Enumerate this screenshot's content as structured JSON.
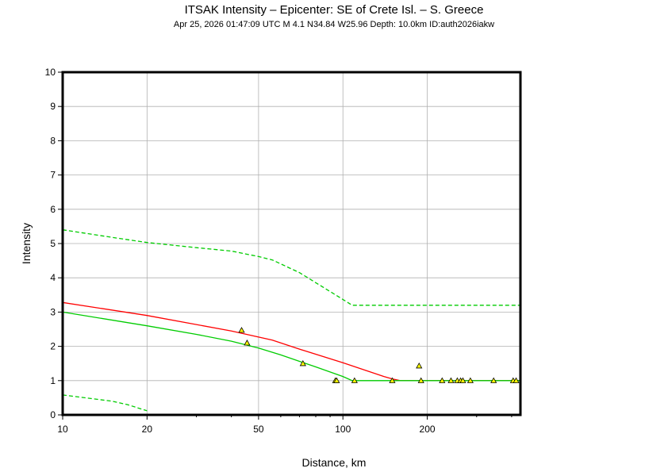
{
  "title": "ITSAK Intensity –  Epicenter: SE of Crete Isl. – S. Greece",
  "subtitle": "Apr 25, 2026 01:47:09 UTC   M 4.1   N34.84 W25.96   Depth: 10.0km   ID:auth2026iakw",
  "colors": {
    "fit": "#ff0000",
    "model": "#00cc00",
    "bounds": "#00cc00",
    "obs_fill": "#ffff00",
    "grid": "#b0b0b0"
  },
  "chart_data": {
    "type": "scatter",
    "xscale": "log",
    "xlim": [
      10,
      430
    ],
    "ylim": [
      0,
      10
    ],
    "xticks": [
      10,
      20,
      50,
      100,
      200
    ],
    "yticks": [
      0,
      1,
      2,
      3,
      4,
      5,
      6,
      7,
      8,
      9,
      10
    ],
    "xlabel": "Distance, km",
    "ylabel": "Intensity",
    "grid": true,
    "lines": [
      {
        "style": "solid",
        "color": "#ff0000",
        "x": [
          10,
          20,
          40,
          56,
          70,
          100,
          140,
          150,
          160,
          430
        ],
        "y": [
          3.28,
          2.9,
          2.45,
          2.18,
          1.92,
          1.52,
          1.12,
          1.05,
          1.0,
          1.0
        ]
      },
      {
        "style": "solid",
        "color": "#00cc00",
        "x": [
          10,
          20,
          30,
          40,
          50,
          60,
          80,
          100,
          108,
          430
        ],
        "y": [
          3.0,
          2.6,
          2.35,
          2.15,
          1.95,
          1.75,
          1.4,
          1.12,
          1.0,
          1.0
        ]
      },
      {
        "style": "dashed",
        "color": "#00cc00",
        "x": [
          10,
          15,
          20,
          30,
          40,
          50,
          56,
          70,
          90,
          108,
          430
        ],
        "y": [
          5.4,
          5.18,
          5.03,
          4.88,
          4.78,
          4.62,
          4.52,
          4.15,
          3.6,
          3.2,
          3.2
        ]
      },
      {
        "style": "dashed",
        "color": "#00cc00",
        "x": [
          10,
          15,
          17,
          20
        ],
        "y": [
          0.58,
          0.4,
          0.3,
          0.12
        ]
      }
    ],
    "points": [
      {
        "x": 43.5,
        "y": 2.47
      },
      {
        "x": 45.5,
        "y": 2.1
      },
      {
        "x": 72,
        "y": 1.5
      },
      {
        "x": 94,
        "y": 1.0
      },
      {
        "x": 95,
        "y": 1.0
      },
      {
        "x": 110,
        "y": 1.0
      },
      {
        "x": 150,
        "y": 1.0
      },
      {
        "x": 187,
        "y": 1.43
      },
      {
        "x": 190,
        "y": 1.0
      },
      {
        "x": 226,
        "y": 1.0
      },
      {
        "x": 243,
        "y": 1.0
      },
      {
        "x": 256,
        "y": 1.0
      },
      {
        "x": 263,
        "y": 1.0
      },
      {
        "x": 268,
        "y": 1.0
      },
      {
        "x": 285,
        "y": 1.0
      },
      {
        "x": 345,
        "y": 1.0
      },
      {
        "x": 405,
        "y": 1.0
      },
      {
        "x": 415,
        "y": 1.0
      }
    ]
  }
}
